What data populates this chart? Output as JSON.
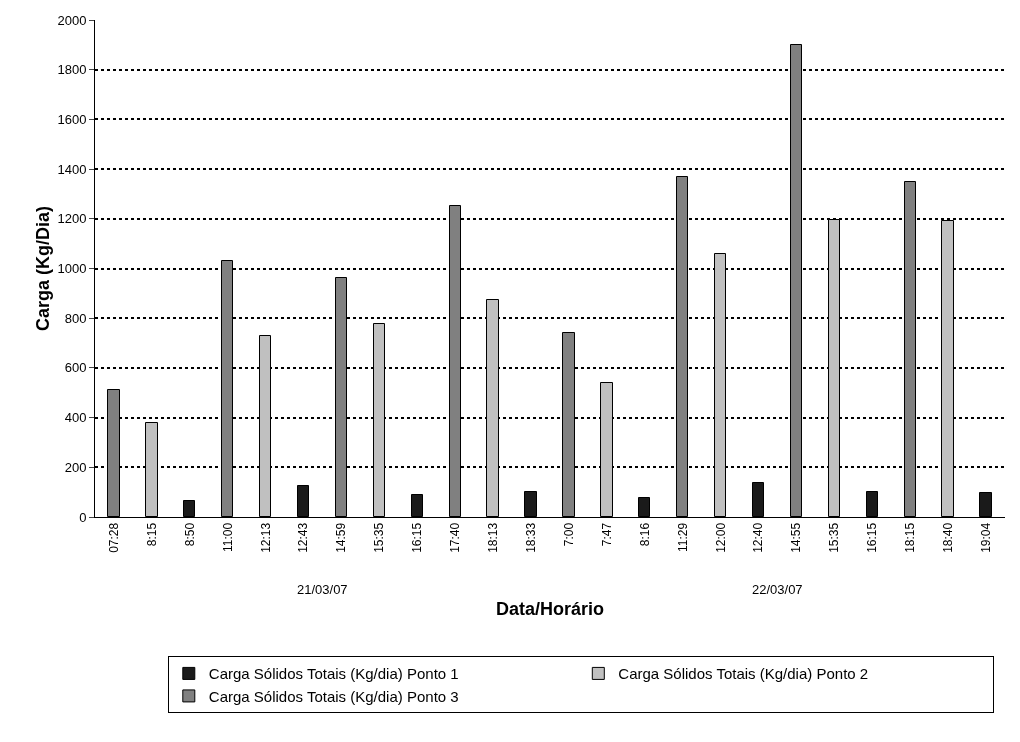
{
  "chart_data": {
    "type": "bar",
    "xlabel": "Data/Horário",
    "ylabel": "Carga (Kg/Dia)",
    "categories": [
      "07:28",
      "8:15",
      "8:50",
      "11:00",
      "12:13",
      "12:43",
      "14:59",
      "15:35",
      "16:15",
      "17:40",
      "18:13",
      "18:33",
      "7:00",
      "7:47",
      "8:16",
      "11:29",
      "12:00",
      "12:40",
      "14:55",
      "15:35",
      "16:15",
      "18:15",
      "18:40",
      "19:04"
    ],
    "series": [
      {
        "name": "Carga Sólidos Totais (Kg/dia) Ponto 1",
        "color": "#1a1a1a",
        "values": [
          null,
          null,
          65,
          null,
          null,
          125,
          null,
          null,
          90,
          null,
          null,
          100,
          null,
          null,
          75,
          null,
          null,
          135,
          null,
          null,
          100,
          null,
          null,
          95
        ]
      },
      {
        "name": "Carga Sólidos Totais (Kg/dia) Ponto 2",
        "color": "#c0c0c0",
        "values": [
          null,
          380,
          null,
          null,
          730,
          null,
          null,
          775,
          null,
          null,
          875,
          null,
          null,
          540,
          null,
          null,
          1060,
          null,
          null,
          1195,
          null,
          null,
          1190,
          null
        ]
      },
      {
        "name": "Carga Sólidos Totais (Kg/dia) Ponto 3",
        "color": "#808080",
        "values": [
          510,
          null,
          null,
          1030,
          null,
          null,
          960,
          null,
          null,
          1250,
          null,
          null,
          740,
          null,
          null,
          1370,
          null,
          null,
          1900,
          null,
          null,
          1350,
          null,
          null
        ]
      }
    ],
    "annotations": [
      "21/03/07",
      "22/03/07"
    ],
    "ylim": [
      0,
      2000
    ],
    "yticks": [
      0,
      200,
      400,
      600,
      800,
      1000,
      1200,
      1400,
      1600,
      1800,
      2000
    ],
    "grid": "y",
    "legend": "bottom"
  }
}
